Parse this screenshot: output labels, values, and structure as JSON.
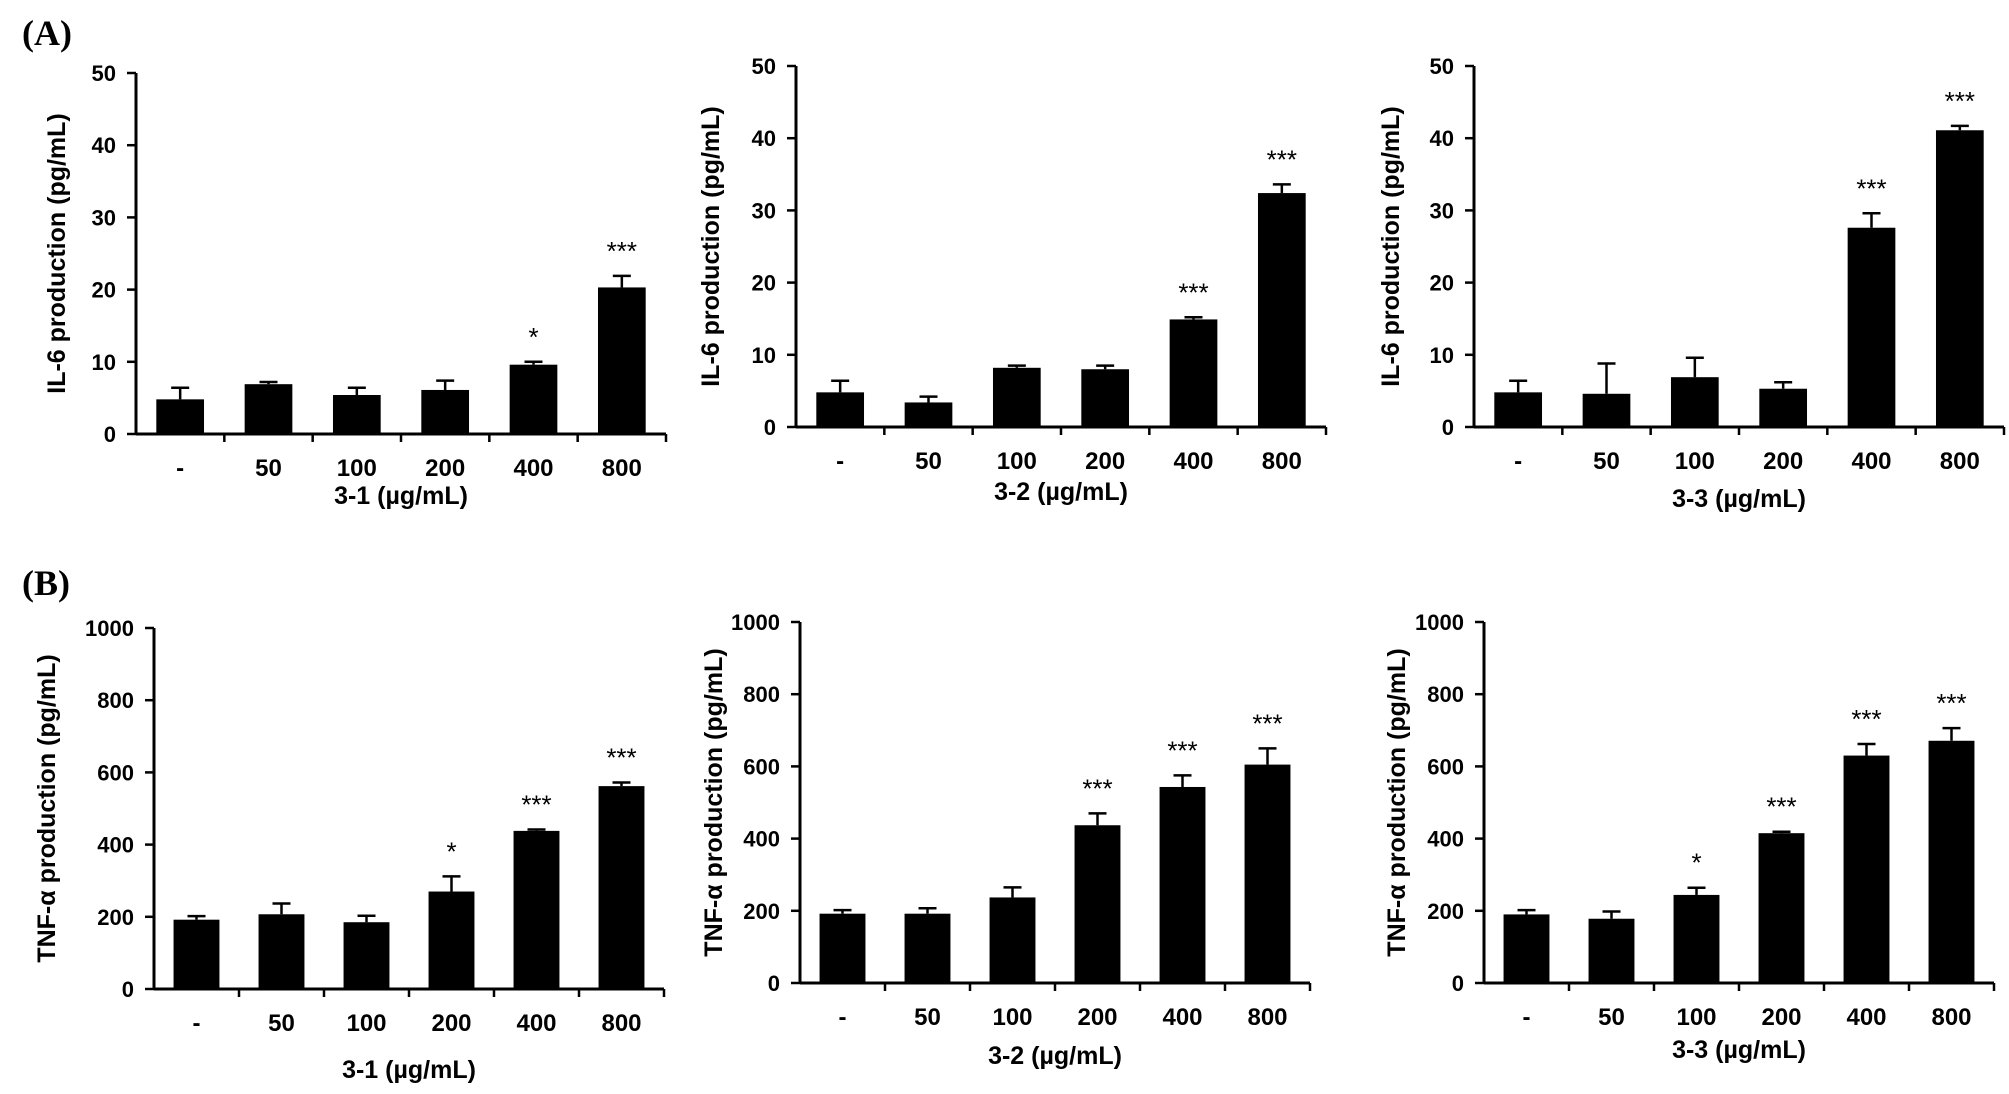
{
  "panels": [
    {
      "label": "(A)"
    },
    {
      "label": "(B)"
    }
  ],
  "chart_data": [
    {
      "type": "bar",
      "panel": "A",
      "title": "",
      "xlabel": "3-1  (µg/mL)",
      "ylabel": "IL-6 production (pg/mL)",
      "categories": [
        "-",
        "50",
        "100",
        "200",
        "400",
        "800"
      ],
      "values": [
        4.8,
        6.9,
        5.4,
        6.1,
        9.6,
        20.3
      ],
      "errors": [
        1.6,
        0.3,
        1.0,
        1.3,
        0.4,
        1.6
      ],
      "significance": [
        "",
        "",
        "",
        "",
        "*",
        "***"
      ],
      "ylim": [
        0,
        50
      ],
      "yticks": [
        0,
        10,
        20,
        30,
        40,
        50
      ],
      "bar_color": "#000000",
      "grid": false
    },
    {
      "type": "bar",
      "panel": "A",
      "title": "",
      "xlabel": "3-2  (µg/mL)",
      "ylabel": "IL-6 production (pg/mL)",
      "categories": [
        "-",
        "50",
        "100",
        "200",
        "400",
        "800"
      ],
      "values": [
        4.8,
        3.4,
        8.2,
        8.0,
        14.9,
        32.4
      ],
      "errors": [
        1.6,
        0.8,
        0.3,
        0.5,
        0.3,
        1.2
      ],
      "significance": [
        "",
        "",
        "",
        "",
        "***",
        "***"
      ],
      "ylim": [
        0,
        50
      ],
      "yticks": [
        0,
        10,
        20,
        30,
        40,
        50
      ],
      "bar_color": "#000000",
      "grid": false
    },
    {
      "type": "bar",
      "panel": "A",
      "title": "",
      "xlabel": "3-3  (µg/mL)",
      "ylabel": "IL-6 production (pg/mL)",
      "categories": [
        "-",
        "50",
        "100",
        "200",
        "400",
        "800"
      ],
      "values": [
        4.8,
        4.6,
        6.9,
        5.3,
        27.6,
        41.1
      ],
      "errors": [
        1.6,
        4.2,
        2.7,
        0.9,
        2.0,
        0.6
      ],
      "significance": [
        "",
        "",
        "",
        "",
        "***",
        "***"
      ],
      "ylim": [
        0,
        50
      ],
      "yticks": [
        0,
        10,
        20,
        30,
        40,
        50
      ],
      "bar_color": "#000000",
      "grid": false
    },
    {
      "type": "bar",
      "panel": "B",
      "title": "",
      "xlabel": "3-1  (µg/mL)",
      "ylabel": "TNF-α production (pg/mL)",
      "categories": [
        "-",
        "50",
        "100",
        "200",
        "400",
        "800"
      ],
      "values": [
        192,
        207,
        185,
        270,
        438,
        562
      ],
      "errors": [
        10,
        30,
        18,
        42,
        4,
        10
      ],
      "significance": [
        "",
        "",
        "",
        "*",
        "***",
        "***"
      ],
      "ylim": [
        0,
        1000
      ],
      "yticks": [
        0,
        200,
        400,
        600,
        800,
        1000
      ],
      "bar_color": "#000000",
      "grid": false
    },
    {
      "type": "bar",
      "panel": "B",
      "title": "",
      "xlabel": "3-2  (µg/mL)",
      "ylabel": "TNF-α production (pg/mL)",
      "categories": [
        "-",
        "50",
        "100",
        "200",
        "400",
        "800"
      ],
      "values": [
        192,
        192,
        237,
        437,
        543,
        605
      ],
      "errors": [
        10,
        15,
        28,
        33,
        32,
        45
      ],
      "significance": [
        "",
        "",
        "",
        "***",
        "***",
        "***"
      ],
      "ylim": [
        0,
        1000
      ],
      "yticks": [
        0,
        200,
        400,
        600,
        800,
        1000
      ],
      "bar_color": "#000000",
      "grid": false
    },
    {
      "type": "bar",
      "panel": "B",
      "title": "",
      "xlabel": "3-3  (µg/mL)",
      "ylabel": "TNF-α production (pg/mL)",
      "categories": [
        "-",
        "50",
        "100",
        "200",
        "400",
        "800"
      ],
      "values": [
        190,
        178,
        244,
        415,
        630,
        671
      ],
      "errors": [
        12,
        20,
        20,
        4,
        32,
        35
      ],
      "significance": [
        "",
        "",
        "*",
        "***",
        "***",
        "***"
      ],
      "ylim": [
        0,
        1000
      ],
      "yticks": [
        0,
        200,
        400,
        600,
        800,
        1000
      ],
      "bar_color": "#000000",
      "grid": false
    }
  ]
}
